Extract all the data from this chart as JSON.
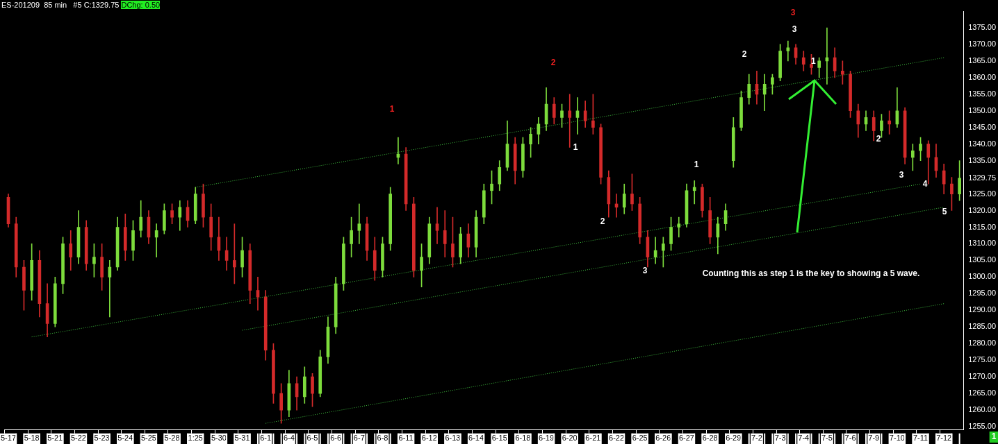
{
  "chart_data": {
    "type": "candlestick",
    "title": "ES-201209  85 min   #5 C:1329.75",
    "subtitle": "DChg: 0.50",
    "categories": [
      "5-17",
      null,
      null,
      "5-18",
      null,
      null,
      "5-21",
      null,
      null,
      "5-22",
      null,
      null,
      "5-23",
      null,
      null,
      "5-24",
      null,
      null,
      "5-25",
      null,
      null,
      "5-28",
      null,
      null,
      "1:25",
      null,
      null,
      "5-30",
      null,
      null,
      "5-31",
      null,
      null,
      "6-1",
      null,
      null,
      "6-4",
      null,
      null,
      "6-5",
      null,
      null,
      "6-6",
      null,
      null,
      "6-7",
      null,
      null,
      "6-8",
      null,
      null,
      "6-11",
      null,
      null,
      "6-12",
      null,
      null,
      "6-13",
      null,
      null,
      "6-14",
      null,
      null,
      "6-15",
      null,
      null,
      "6-18",
      null,
      null,
      "6-19",
      null,
      null,
      "6-20",
      null,
      null,
      "6-21",
      null,
      null,
      "6-22",
      null,
      null,
      "6-25",
      null,
      null,
      "6-26",
      null,
      null,
      "6-27",
      null,
      null,
      "6-28",
      null,
      null,
      "6-29",
      null,
      null,
      "7-2",
      null,
      null,
      "7-3",
      null,
      null,
      "7-4",
      null,
      null,
      "7-5",
      null,
      null,
      "7-6",
      null,
      null,
      "7-9",
      null,
      null,
      "7-10",
      null,
      null,
      "7-11",
      null,
      null,
      "7-12",
      null,
      null
    ],
    "ohlc": [
      [
        1324,
        1325,
        1315,
        1316
      ],
      [
        1316,
        1318,
        1300,
        1303
      ],
      [
        1303,
        1305,
        1290,
        1296
      ],
      [
        1296,
        1310,
        1293,
        1305
      ],
      [
        1305,
        1308,
        1288,
        1292
      ],
      [
        1292,
        1298,
        1282,
        1286
      ],
      [
        1286,
        1300,
        1285,
        1298
      ],
      [
        1298,
        1312,
        1295,
        1310
      ],
      [
        1310,
        1314,
        1302,
        1306
      ],
      [
        1306,
        1320,
        1304,
        1315
      ],
      [
        1315,
        1317,
        1302,
        1304
      ],
      [
        1304,
        1310,
        1300,
        1306
      ],
      [
        1306,
        1310,
        1296,
        1300
      ],
      [
        1300,
        1305,
        1288,
        1303
      ],
      [
        1303,
        1318,
        1302,
        1315
      ],
      [
        1315,
        1319,
        1305,
        1308
      ],
      [
        1308,
        1317,
        1305,
        1314
      ],
      [
        1314,
        1323,
        1312,
        1318
      ],
      [
        1318,
        1320,
        1310,
        1312
      ],
      [
        1312,
        1316,
        1306,
        1314
      ],
      [
        1314,
        1322,
        1313,
        1320
      ],
      [
        1320,
        1322,
        1316,
        1318
      ],
      [
        1318,
        1323,
        1314,
        1321
      ],
      [
        1321,
        1323,
        1315,
        1317
      ],
      [
        1317,
        1327,
        1316,
        1325
      ],
      [
        1325,
        1328,
        1315,
        1318
      ],
      [
        1318,
        1322,
        1308,
        1312
      ],
      [
        1312,
        1318,
        1305,
        1308
      ],
      [
        1308,
        1312,
        1302,
        1305
      ],
      [
        1305,
        1316,
        1298,
        1303
      ],
      [
        1303,
        1312,
        1300,
        1308
      ],
      [
        1308,
        1310,
        1292,
        1296
      ],
      [
        1296,
        1300,
        1290,
        1294
      ],
      [
        1294,
        1296,
        1275,
        1278
      ],
      [
        1278,
        1280,
        1262,
        1265
      ],
      [
        1265,
        1268,
        1256,
        1260
      ],
      [
        1260,
        1272,
        1258,
        1268
      ],
      [
        1268,
        1270,
        1260,
        1264
      ],
      [
        1264,
        1273,
        1262,
        1270
      ],
      [
        1270,
        1271,
        1261,
        1265
      ],
      [
        1265,
        1278,
        1264,
        1276
      ],
      [
        1276,
        1288,
        1274,
        1285
      ],
      [
        1285,
        1300,
        1283,
        1298
      ],
      [
        1298,
        1312,
        1296,
        1310
      ],
      [
        1310,
        1318,
        1306,
        1314
      ],
      [
        1314,
        1322,
        1310,
        1316
      ],
      [
        1316,
        1318,
        1305,
        1308
      ],
      [
        1308,
        1312,
        1299,
        1302
      ],
      [
        1302,
        1312,
        1300,
        1310
      ],
      [
        1310,
        1327,
        1308,
        1325
      ],
      [
        1336,
        1342,
        1334,
        1337
      ],
      [
        1337,
        1339,
        1320,
        1322
      ],
      [
        1322,
        1324,
        1300,
        1302
      ],
      [
        1302,
        1310,
        1297,
        1306
      ],
      [
        1306,
        1318,
        1304,
        1316
      ],
      [
        1316,
        1321,
        1310,
        1314
      ],
      [
        1314,
        1320,
        1306,
        1310
      ],
      [
        1310,
        1318,
        1303,
        1306
      ],
      [
        1306,
        1315,
        1304,
        1313
      ],
      [
        1313,
        1316,
        1306,
        1309
      ],
      [
        1309,
        1320,
        1306,
        1318
      ],
      [
        1318,
        1328,
        1316,
        1326
      ],
      [
        1326,
        1332,
        1322,
        1328
      ],
      [
        1328,
        1335,
        1326,
        1333
      ],
      [
        1333,
        1347,
        1332,
        1340
      ],
      [
        1340,
        1342,
        1328,
        1332
      ],
      [
        1332,
        1342,
        1330,
        1340
      ],
      [
        1340,
        1345,
        1336,
        1343
      ],
      [
        1343,
        1348,
        1340,
        1346
      ],
      [
        1346,
        1357,
        1344,
        1352
      ],
      [
        1352,
        1354,
        1346,
        1348
      ],
      [
        1348,
        1352,
        1345,
        1350
      ],
      [
        1350,
        1355,
        1339,
        1348
      ],
      [
        1348,
        1354,
        1343,
        1350
      ],
      [
        1350,
        1353,
        1345,
        1347
      ],
      [
        1347,
        1355,
        1343,
        1345
      ],
      [
        1345,
        1346,
        1328,
        1330
      ],
      [
        1330,
        1332,
        1318,
        1322
      ],
      [
        1322,
        1325,
        1318,
        1321
      ],
      [
        1321,
        1328,
        1319,
        1325
      ],
      [
        1325,
        1331,
        1320,
        1322
      ],
      [
        1322,
        1324,
        1310,
        1312
      ],
      [
        1312,
        1314,
        1303,
        1306
      ],
      [
        1306,
        1312,
        1304,
        1308
      ],
      [
        1308,
        1312,
        1303,
        1310
      ],
      [
        1310,
        1318,
        1308,
        1315
      ],
      [
        1315,
        1318,
        1312,
        1316
      ],
      [
        1316,
        1328,
        1315,
        1326
      ],
      [
        1326,
        1329,
        1322,
        1327
      ],
      [
        1327,
        1328,
        1318,
        1320
      ],
      [
        1320,
        1324,
        1310,
        1312
      ],
      [
        1312,
        1318,
        1307,
        1316
      ],
      [
        1316,
        1322,
        1314,
        1320
      ],
      [
        1335,
        1348,
        1333,
        1345
      ],
      [
        1345,
        1356,
        1344,
        1354
      ],
      [
        1354,
        1361,
        1352,
        1358
      ],
      [
        1358,
        1362,
        1352,
        1355
      ],
      [
        1355,
        1361,
        1350,
        1358
      ],
      [
        1358,
        1361,
        1355,
        1360
      ],
      [
        1360,
        1370,
        1359,
        1368
      ],
      [
        1368,
        1371,
        1365,
        1369
      ],
      [
        1369,
        1370,
        1364,
        1366
      ],
      [
        1366,
        1368,
        1362,
        1364
      ],
      [
        1364,
        1367,
        1361,
        1363
      ],
      [
        1363,
        1366,
        1360,
        1365
      ],
      [
        1365,
        1375,
        1358,
        1366
      ],
      [
        1366,
        1369,
        1360,
        1362
      ],
      [
        1362,
        1365,
        1358,
        1361
      ],
      [
        1361,
        1362,
        1348,
        1350
      ],
      [
        1350,
        1352,
        1342,
        1346
      ],
      [
        1346,
        1350,
        1344,
        1348
      ],
      [
        1348,
        1350,
        1341,
        1344
      ],
      [
        1344,
        1349,
        1342,
        1347
      ],
      [
        1347,
        1350,
        1343,
        1346
      ],
      [
        1346,
        1357,
        1345,
        1350
      ],
      [
        1350,
        1351,
        1334,
        1336
      ],
      [
        1336,
        1340,
        1332,
        1338
      ],
      [
        1338,
        1342,
        1335,
        1340
      ],
      [
        1340,
        1341,
        1328,
        1336
      ],
      [
        1336,
        1340,
        1330,
        1332
      ],
      [
        1332,
        1334,
        1325,
        1328
      ],
      [
        1328,
        1330,
        1320,
        1325
      ],
      [
        1325,
        1335,
        1323,
        1329.75
      ]
    ],
    "series": [
      {
        "type": "line",
        "color": "#3fbf3f",
        "line_style": "dotted",
        "x": [
          "5-18",
          "7-11"
        ],
        "values": [
          1282,
          1328
        ]
      },
      {
        "type": "line",
        "color": "#3fbf3f",
        "line_style": "dotted",
        "x": [
          "1:25",
          "7-12"
        ],
        "values": [
          1327,
          1366
        ]
      },
      {
        "type": "line",
        "color": "#3fbf3f",
        "line_style": "dotted",
        "x": [
          "5-31",
          "7-12"
        ],
        "values": [
          1284,
          1321
        ]
      },
      {
        "type": "line",
        "color": "#3fbf3f",
        "line_style": "dotted",
        "x": [
          "6-1",
          "7-12"
        ],
        "values": [
          1256,
          1292
        ]
      }
    ],
    "ylim": [
      1254,
      1380
    ],
    "yticks": [
      {
        "value": 1255,
        "label": "1255.00"
      },
      {
        "value": 1260,
        "label": "1260.00"
      },
      {
        "value": 1265,
        "label": "1265.00"
      },
      {
        "value": 1270,
        "label": "1270.00"
      },
      {
        "value": 1275,
        "label": "1275.00"
      },
      {
        "value": 1280,
        "label": "1280.00"
      },
      {
        "value": 1285,
        "label": "1285.00"
      },
      {
        "value": 1290,
        "label": "1290.00"
      },
      {
        "value": 1295,
        "label": "1295.00"
      },
      {
        "value": 1300,
        "label": "1300.00"
      },
      {
        "value": 1305,
        "label": "1305.00"
      },
      {
        "value": 1310,
        "label": "1310.00"
      },
      {
        "value": 1315,
        "label": "1315.00"
      },
      {
        "value": 1320,
        "label": "1320.00"
      },
      {
        "value": 1325,
        "label": "1325.00"
      },
      {
        "value": 1329.75,
        "label": "1329.75"
      },
      {
        "value": 1335,
        "label": "1335.00"
      },
      {
        "value": 1340,
        "label": "1340.00"
      },
      {
        "value": 1345,
        "label": "1345.00"
      },
      {
        "value": 1350,
        "label": "1350.00"
      },
      {
        "value": 1355,
        "label": "1355.00"
      },
      {
        "value": 1360,
        "label": "1360.00"
      },
      {
        "value": 1365,
        "label": "1365.00"
      },
      {
        "value": 1370,
        "label": "1370.00"
      },
      {
        "value": 1375,
        "label": "1375.00"
      }
    ],
    "annotations": [
      "1",
      "2",
      "3",
      "1",
      "2",
      "3",
      "1",
      "2",
      "3",
      {
        "text": "1",
        "x": "7-4",
        "y": 1362
      },
      "2",
      "3",
      "4",
      "5",
      "Counting this as step 1 is the key to showing a 5 wave.",
      "1"
    ],
    "grid": false,
    "legend": false
  }
}
